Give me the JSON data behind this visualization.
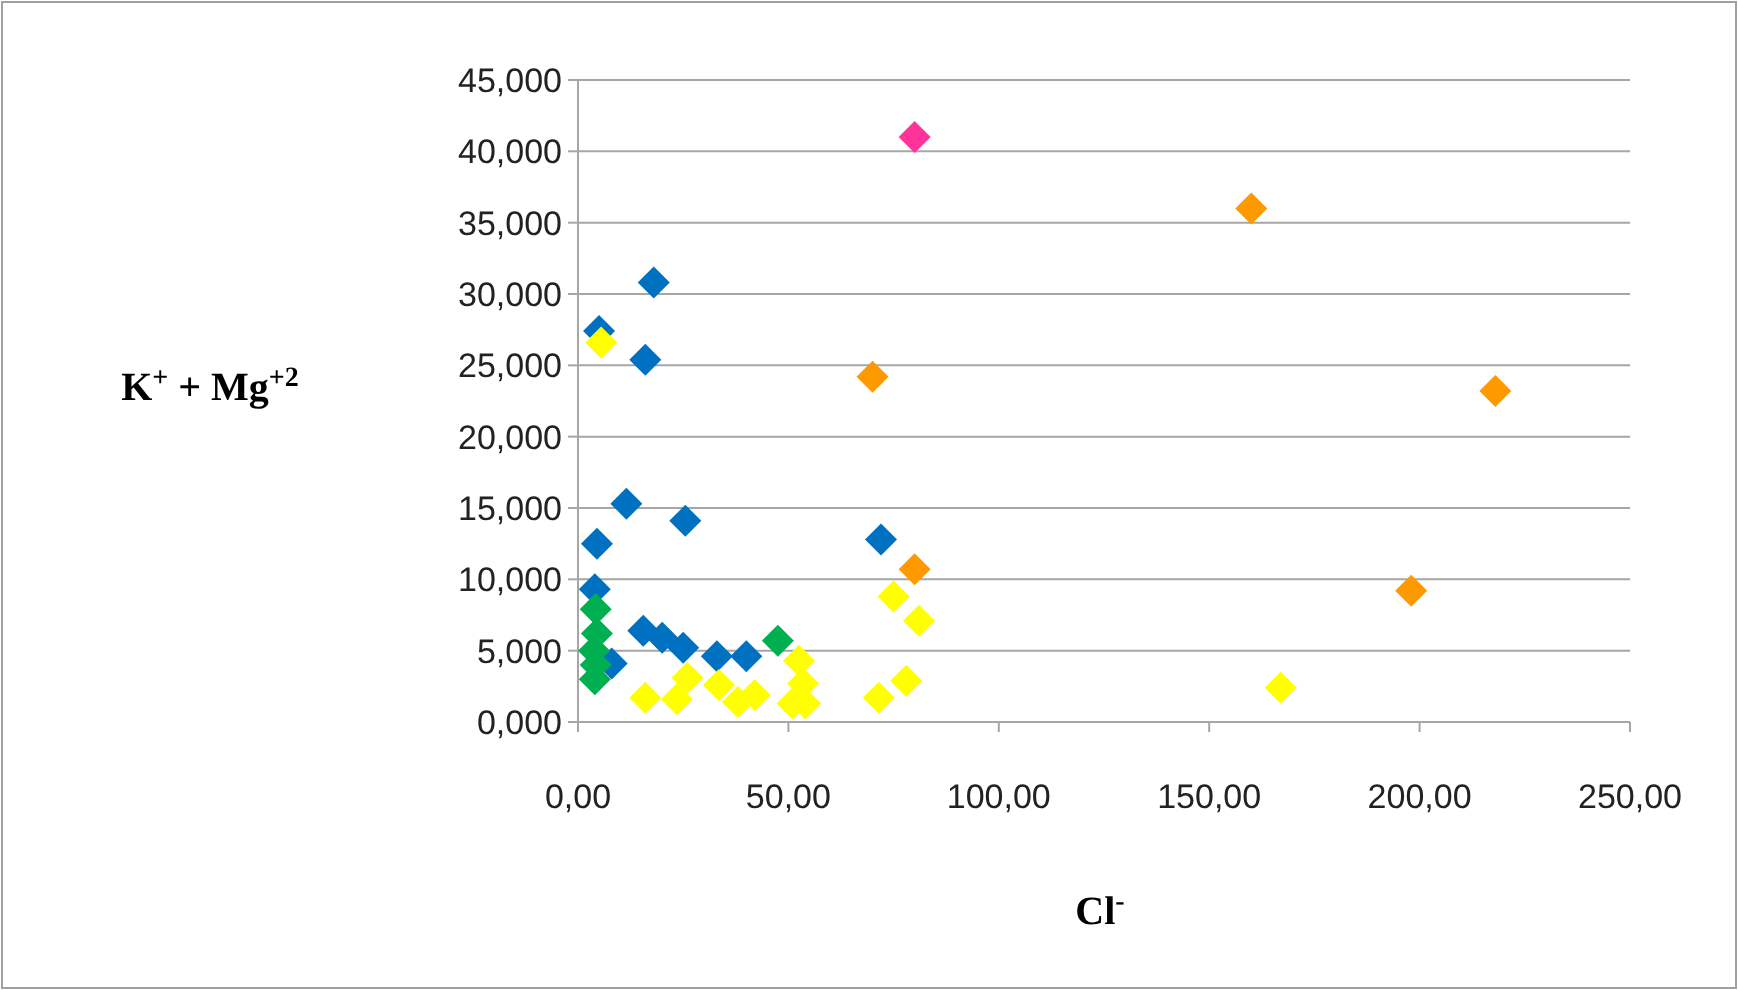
{
  "chart_data": {
    "type": "scatter",
    "xlabel": "Cl$^{-}$",
    "ylabel": "K$^{+}$ + Mg$^{+2}$",
    "marker": "diamond",
    "grid": "y",
    "xlim": [
      0,
      250
    ],
    "xticks": [
      {
        "value": 0,
        "label": "0,00"
      },
      {
        "value": 50,
        "label": "50,00"
      },
      {
        "value": 100,
        "label": "100,00"
      },
      {
        "value": 150,
        "label": "150,00"
      },
      {
        "value": 200,
        "label": "200,00"
      },
      {
        "value": 250,
        "label": "250,00"
      }
    ],
    "ylim": [
      0,
      45
    ],
    "yticks": [
      {
        "value": 0,
        "label": "0,000"
      },
      {
        "value": 5,
        "label": "5,000"
      },
      {
        "value": 10,
        "label": "10,000"
      },
      {
        "value": 15,
        "label": "15,000"
      },
      {
        "value": 20,
        "label": "20,000"
      },
      {
        "value": 25,
        "label": "25,000"
      },
      {
        "value": 30,
        "label": "30,000"
      },
      {
        "value": 35,
        "label": "35,000"
      },
      {
        "value": 40,
        "label": "40,000"
      },
      {
        "value": 45,
        "label": "45,000"
      }
    ],
    "series": [
      {
        "color": "#0070c0",
        "x": [
          18,
          5,
          16,
          11.5,
          25.5,
          4.5,
          4,
          15.5,
          20,
          25,
          33,
          40,
          8,
          72
        ],
        "values": [
          30.8,
          27.4,
          25.4,
          15.3,
          14.1,
          12.5,
          9.3,
          6.4,
          5.9,
          5.2,
          4.6,
          4.6,
          4.1,
          12.8
        ]
      },
      {
        "color": "#00b050",
        "x": [
          4.2,
          4.5,
          3.8,
          4.2,
          4,
          47.5
        ],
        "values": [
          7.9,
          6.2,
          5.0,
          4.0,
          3.0,
          5.7
        ]
      },
      {
        "color": "#ffff00",
        "x": [
          5.5,
          16,
          23.5,
          26,
          33.5,
          38,
          42,
          52.5,
          53.5,
          54,
          51,
          71.5,
          78,
          75,
          81,
          167
        ],
        "values": [
          26.6,
          1.7,
          1.6,
          3.1,
          2.6,
          1.4,
          1.9,
          4.3,
          2.7,
          1.3,
          1.3,
          1.7,
          2.9,
          8.8,
          7.1,
          2.4
        ]
      },
      {
        "color": "#ff9900",
        "x": [
          70,
          80,
          160,
          218,
          198
        ],
        "values": [
          24.2,
          10.7,
          36,
          23.2,
          9.2
        ]
      },
      {
        "color": "#ff3399",
        "x": [
          80
        ],
        "values": [
          41
        ]
      }
    ]
  }
}
